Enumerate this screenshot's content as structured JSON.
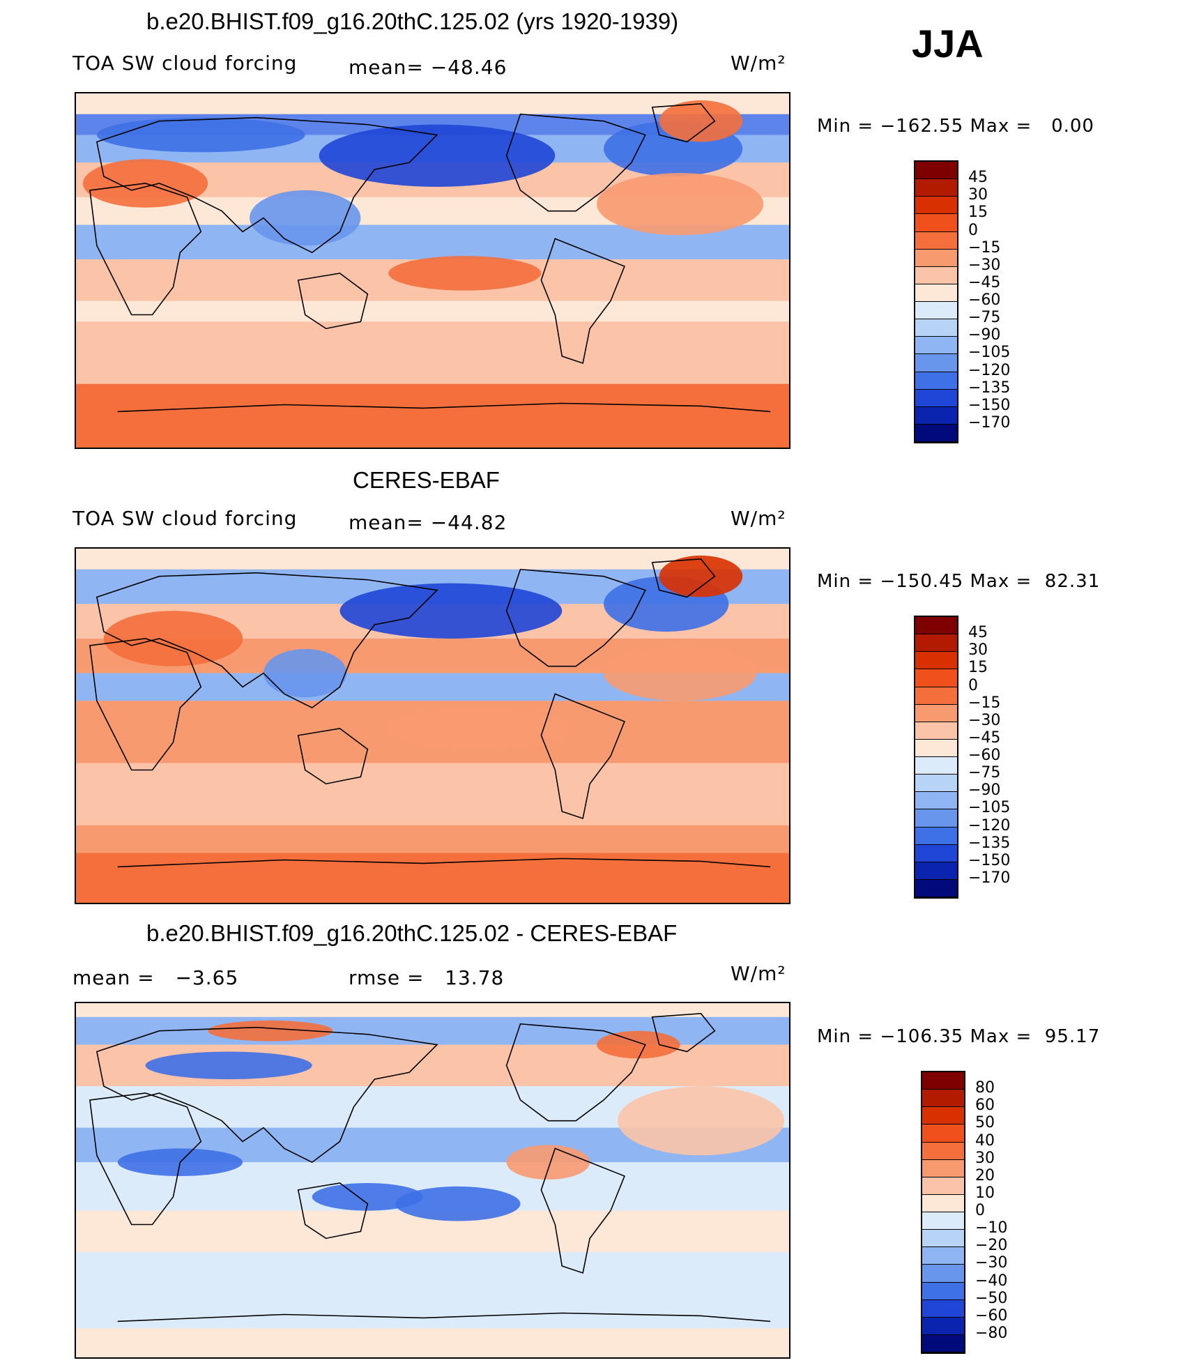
{
  "season": "JJA",
  "panels": [
    {
      "title": "b.e20.BHIST.f09_g16.20thC.125.02 (yrs 1920-1939)",
      "left_label": "TOA SW cloud forcing",
      "center_label": "mean= −48.46",
      "units": "W/m²",
      "minmax": "Min = −162.55 Max =   0.00",
      "variant": "model"
    },
    {
      "title": "CERES-EBAF",
      "left_label": "TOA SW cloud forcing",
      "center_label": "mean= −44.82",
      "units": "W/m²",
      "minmax": "Min = −150.45 Max =  82.31",
      "variant": "obs"
    },
    {
      "title": "b.e20.BHIST.f09_g16.20thC.125.02 - CERES-EBAF",
      "left_label": "mean =   −3.65",
      "center_label": "rmse =   13.78",
      "units": "W/m²",
      "minmax": "Min = −106.35 Max =  95.17",
      "variant": "diff"
    }
  ],
  "colorbars": [
    {
      "labels": [
        "45",
        "30",
        "15",
        "0",
        "−15",
        "−30",
        "−45",
        "−60",
        "−75",
        "−90",
        "−105",
        "−120",
        "−135",
        "−150",
        "−170"
      ],
      "colors": [
        "#7f0000",
        "#b31b00",
        "#d93000",
        "#f0501c",
        "#f46f3c",
        "#f89a70",
        "#fbc4a8",
        "#fde7d6",
        "#dcebfa",
        "#b7d4f7",
        "#8fb5f2",
        "#6896ec",
        "#3e70e6",
        "#1f46d6",
        "#0a24b0",
        "#000a7a"
      ]
    },
    {
      "labels": [
        "45",
        "30",
        "15",
        "0",
        "−15",
        "−30",
        "−45",
        "−60",
        "−75",
        "−90",
        "−105",
        "−120",
        "−135",
        "−150",
        "−170"
      ],
      "colors": [
        "#7f0000",
        "#b31b00",
        "#d93000",
        "#f0501c",
        "#f46f3c",
        "#f89a70",
        "#fbc4a8",
        "#fde7d6",
        "#dcebfa",
        "#b7d4f7",
        "#8fb5f2",
        "#6896ec",
        "#3e70e6",
        "#1f46d6",
        "#0a24b0",
        "#000a7a"
      ]
    },
    {
      "labels": [
        "80",
        "60",
        "50",
        "40",
        "30",
        "20",
        "10",
        "0",
        "−10",
        "−20",
        "−30",
        "−40",
        "−50",
        "−60",
        "−80"
      ],
      "colors": [
        "#7f0000",
        "#b31b00",
        "#d93000",
        "#f0501c",
        "#f46f3c",
        "#f89a70",
        "#fbc4a8",
        "#fde7d6",
        "#dcebfa",
        "#b7d4f7",
        "#8fb5f2",
        "#6896ec",
        "#3e70e6",
        "#1f46d6",
        "#0a24b0",
        "#000a7a"
      ]
    }
  ]
}
